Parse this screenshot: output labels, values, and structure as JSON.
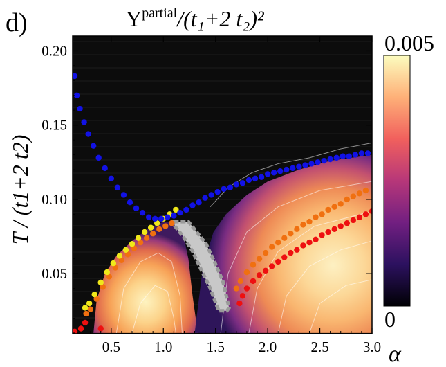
{
  "panel_label": "d)",
  "title": {
    "symbol": "Υ",
    "superscript": "partial",
    "divisor": "/(t₁+2 t₂)²"
  },
  "chart_data": {
    "type": "heatmap",
    "title": "Υ^partial/(t1+2 t2)^2",
    "xlabel": "α",
    "ylabel": "T / (t1+2 t2)",
    "xlim": [
      0.13,
      3.0
    ],
    "ylim": [
      0.0095,
      0.21
    ],
    "x_ticks": [
      0.5,
      1.0,
      1.5,
      2.0,
      2.5,
      3.0
    ],
    "x_tick_labels": [
      "0.5",
      "1.0",
      "1.5",
      "2.0",
      "2.5",
      "3.0"
    ],
    "y_ticks": [
      0.05,
      0.1,
      0.15,
      0.2
    ],
    "y_tick_labels": [
      "0.05",
      "0.10",
      "0.15",
      "0.20"
    ],
    "colorbar": {
      "min": 0,
      "max": 0.005,
      "min_label": "0",
      "max_label": "0.005",
      "colors": [
        "#000004",
        "#2c115f",
        "#721f81",
        "#b73779",
        "#f1605d",
        "#feb078",
        "#fcfdbf"
      ]
    },
    "series": [
      {
        "name": "blue markers",
        "color": "#1212e6",
        "x": [
          0.15,
          0.17,
          0.2,
          0.24,
          0.28,
          0.33,
          0.38,
          0.44,
          0.5,
          0.56,
          0.62,
          0.68,
          0.74,
          0.8,
          0.86,
          0.92,
          0.98,
          1.04,
          1.1,
          1.16,
          1.22,
          1.28,
          1.34,
          1.4,
          1.46,
          1.52,
          1.58,
          1.64,
          1.7,
          1.76,
          1.82,
          1.88,
          1.94,
          2.0,
          2.06,
          2.12,
          2.18,
          2.24,
          2.3,
          2.36,
          2.42,
          2.48,
          2.54,
          2.6,
          2.66,
          2.72,
          2.78,
          2.84,
          2.9,
          2.96
        ],
        "y": [
          0.183,
          0.17,
          0.161,
          0.152,
          0.144,
          0.136,
          0.128,
          0.121,
          0.114,
          0.108,
          0.103,
          0.098,
          0.094,
          0.091,
          0.088,
          0.087,
          0.087,
          0.088,
          0.089,
          0.091,
          0.093,
          0.096,
          0.098,
          0.101,
          0.103,
          0.105,
          0.107,
          0.108,
          0.11,
          0.111,
          0.113,
          0.114,
          0.115,
          0.117,
          0.118,
          0.119,
          0.12,
          0.121,
          0.122,
          0.123,
          0.124,
          0.125,
          0.126,
          0.127,
          0.128,
          0.129,
          0.129,
          0.13,
          0.131,
          0.131
        ]
      },
      {
        "name": "yellow markers",
        "color": "#f0e81a",
        "x": [
          0.25,
          0.29,
          0.34,
          0.4,
          0.46,
          0.52,
          0.58,
          0.64,
          0.7,
          0.76,
          0.82,
          0.88,
          0.94,
          1.0,
          1.06,
          1.12
        ],
        "y": [
          0.027,
          0.03,
          0.036,
          0.044,
          0.051,
          0.057,
          0.062,
          0.066,
          0.07,
          0.074,
          0.078,
          0.081,
          0.084,
          0.087,
          0.09,
          0.093
        ]
      },
      {
        "name": "orange markers",
        "color": "#f07010",
        "x": [
          0.26,
          0.3,
          0.36,
          0.42,
          0.48,
          0.54,
          0.6,
          0.66,
          0.72,
          0.78,
          0.84,
          0.9,
          0.96,
          1.02,
          1.08,
          1.7,
          1.74,
          1.8,
          1.86,
          1.92,
          1.98,
          2.04,
          2.1,
          2.16,
          2.22,
          2.28,
          2.34,
          2.4,
          2.46,
          2.52,
          2.58,
          2.64,
          2.7,
          2.76,
          2.82,
          2.88,
          2.94
        ],
        "y": [
          0.023,
          0.026,
          0.033,
          0.041,
          0.048,
          0.054,
          0.059,
          0.063,
          0.067,
          0.071,
          0.074,
          0.077,
          0.08,
          0.082,
          0.084,
          0.04,
          0.045,
          0.051,
          0.056,
          0.06,
          0.064,
          0.068,
          0.071,
          0.074,
          0.077,
          0.08,
          0.083,
          0.085,
          0.088,
          0.09,
          0.093,
          0.095,
          0.097,
          0.1,
          0.102,
          0.104,
          0.106
        ]
      },
      {
        "name": "red markers",
        "color": "#ee1010",
        "x": [
          0.15,
          0.21,
          0.25,
          0.4,
          1.73,
          1.76,
          1.8,
          1.86,
          1.92,
          1.98,
          2.04,
          2.1,
          2.16,
          2.22,
          2.28,
          2.34,
          2.4,
          2.46,
          2.52,
          2.58,
          2.64,
          2.7,
          2.76,
          2.82,
          2.88,
          2.94,
          3.0
        ],
        "y": [
          0.011,
          0.013,
          0.017,
          0.013,
          0.03,
          0.035,
          0.04,
          0.045,
          0.049,
          0.052,
          0.055,
          0.058,
          0.061,
          0.064,
          0.066,
          0.069,
          0.071,
          0.073,
          0.076,
          0.078,
          0.08,
          0.082,
          0.084,
          0.086,
          0.088,
          0.09,
          0.092
        ]
      }
    ],
    "gray_region": {
      "name": "gray excluded region",
      "color": "#c8c8c8",
      "outline_color": "#9a9a9a",
      "polygon_x": [
        1.1,
        1.24,
        1.32,
        1.41,
        1.49,
        1.57,
        1.63,
        1.61,
        1.53,
        1.45,
        1.36,
        1.28,
        1.19,
        1.11
      ],
      "polygon_y": [
        0.085,
        0.085,
        0.078,
        0.07,
        0.058,
        0.045,
        0.027,
        0.025,
        0.025,
        0.04,
        0.053,
        0.065,
        0.075,
        0.082
      ]
    }
  }
}
